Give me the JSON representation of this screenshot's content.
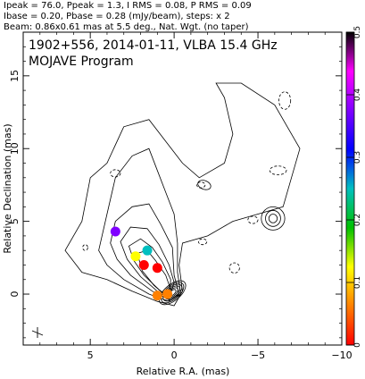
{
  "header": {
    "line1": "Ipeak = 76.0, Ppeak = 1.3, I RMS = 0.08, P RMS = 0.09",
    "line2": "Ibase = 0.20, Pbase = 0.28 (mJy/beam), steps: x 2",
    "line3": "Beam: 0.86x0.61 mas at 5.5 deg., Nat. Wgt. (no taper)"
  },
  "plot": {
    "title_line1": "1902+556, 2014-01-11, VLBA 15.4 GHz",
    "title_line2": "MOJAVE Program"
  },
  "chart_data": {
    "type": "heatmap",
    "xlabel": "Relative R.A. (mas)",
    "ylabel": "Relative Declination (mas)",
    "xlim": [
      9,
      -10
    ],
    "ylim": [
      -3.5,
      18
    ],
    "xticks": [
      5,
      0,
      -5,
      -10
    ],
    "xtick_labels": [
      "5",
      "0",
      "−5",
      "−10"
    ],
    "yticks": [
      0,
      5,
      10,
      15
    ],
    "ytick_labels": [
      "0",
      "5",
      "10",
      "15"
    ],
    "colorbar": {
      "range": [
        0,
        0.5
      ],
      "ticks": [
        0,
        0.1,
        0.2,
        0.3,
        0.4,
        0.5
      ],
      "tick_labels": [
        "0",
        "0.1",
        "0.2",
        "0.3",
        "0.4",
        "0.5"
      ],
      "colors": [
        "#ff0000",
        "#ff8000",
        "#ffff00",
        "#00c000",
        "#00c0c0",
        "#0000ff",
        "#8000ff",
        "#ff00ff",
        "#000000"
      ]
    },
    "core_position": [
      0,
      0
    ],
    "jet_position_angle_deg": -40,
    "polarized_patches": [
      {
        "x": 1.8,
        "y": 2.0,
        "value": 0.02
      },
      {
        "x": 1.0,
        "y": 1.8,
        "value": 0.0
      },
      {
        "x": 2.3,
        "y": 2.6,
        "value": 0.1
      },
      {
        "x": 1.6,
        "y": 3.0,
        "value": 0.27
      },
      {
        "x": 3.5,
        "y": 4.3,
        "value": 0.38
      },
      {
        "x": 0.4,
        "y": 0.0,
        "value": 0.06
      },
      {
        "x": 1.0,
        "y": -0.1,
        "value": 0.04
      }
    ],
    "contour_levels_mJy": [
      0.2,
      0.4,
      0.8,
      1.6,
      3.2,
      6.4,
      12.8,
      25.6,
      51.2
    ]
  }
}
